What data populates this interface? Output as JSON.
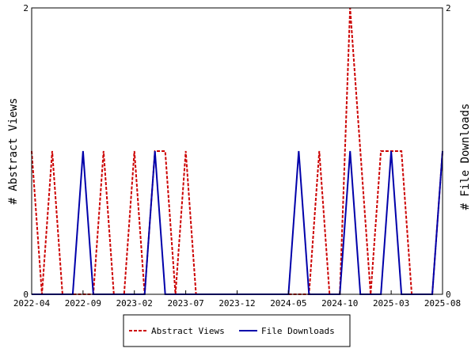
{
  "chart_data": {
    "type": "line",
    "x_unit": "month",
    "x_start": "2022-04",
    "x": [
      "2022-04",
      "2022-05",
      "2022-06",
      "2022-07",
      "2022-08",
      "2022-09",
      "2022-10",
      "2022-11",
      "2022-12",
      "2023-01",
      "2023-02",
      "2023-03",
      "2023-04",
      "2023-05",
      "2023-06",
      "2023-07",
      "2023-08",
      "2023-09",
      "2023-10",
      "2023-11",
      "2023-12",
      "2024-01",
      "2024-02",
      "2024-03",
      "2024-04",
      "2024-05",
      "2024-06",
      "2024-07",
      "2024-08",
      "2024-09",
      "2024-10",
      "2024-11",
      "2024-12",
      "2025-01",
      "2025-02",
      "2025-03",
      "2025-04",
      "2025-05",
      "2025-06",
      "2025-07",
      "2025-08"
    ],
    "x_ticks": [
      "2022-04",
      "2022-09",
      "2023-02",
      "2023-07",
      "2023-12",
      "2024-05",
      "2024-10",
      "2025-03",
      "2025-08"
    ],
    "xlim": [
      "2022-04",
      "2025-08"
    ],
    "series": [
      {
        "name": "Abstract Views",
        "axis": "left",
        "color": "#cc0000",
        "style": "dashed",
        "values": [
          1,
          0,
          1,
          0,
          0,
          0,
          0,
          1,
          0,
          0,
          1,
          0,
          1,
          1,
          0,
          1,
          0,
          0,
          0,
          0,
          0,
          0,
          0,
          0,
          0,
          0,
          0,
          0,
          1,
          0,
          0,
          2,
          1,
          0,
          1,
          1,
          1,
          0,
          0,
          0,
          1
        ]
      },
      {
        "name": "File Downloads",
        "axis": "right",
        "color": "#0000aa",
        "style": "solid",
        "values": [
          0,
          0,
          0,
          0,
          0,
          1,
          0,
          0,
          0,
          0,
          0,
          0,
          1,
          0,
          0,
          0,
          0,
          0,
          0,
          0,
          0,
          0,
          0,
          0,
          0,
          0,
          1,
          0,
          0,
          0,
          0,
          1,
          0,
          0,
          0,
          1,
          0,
          0,
          0,
          0,
          1
        ]
      }
    ],
    "y_left": {
      "label": "# Abstract Views",
      "ylim": [
        0,
        2
      ],
      "ticks": [
        "0",
        "2"
      ]
    },
    "y_right": {
      "label": "# File Downloads",
      "ylim": [
        0,
        2
      ],
      "ticks": [
        "0",
        "2"
      ]
    },
    "legend": {
      "placement": "bottom-center"
    },
    "grid": false
  }
}
